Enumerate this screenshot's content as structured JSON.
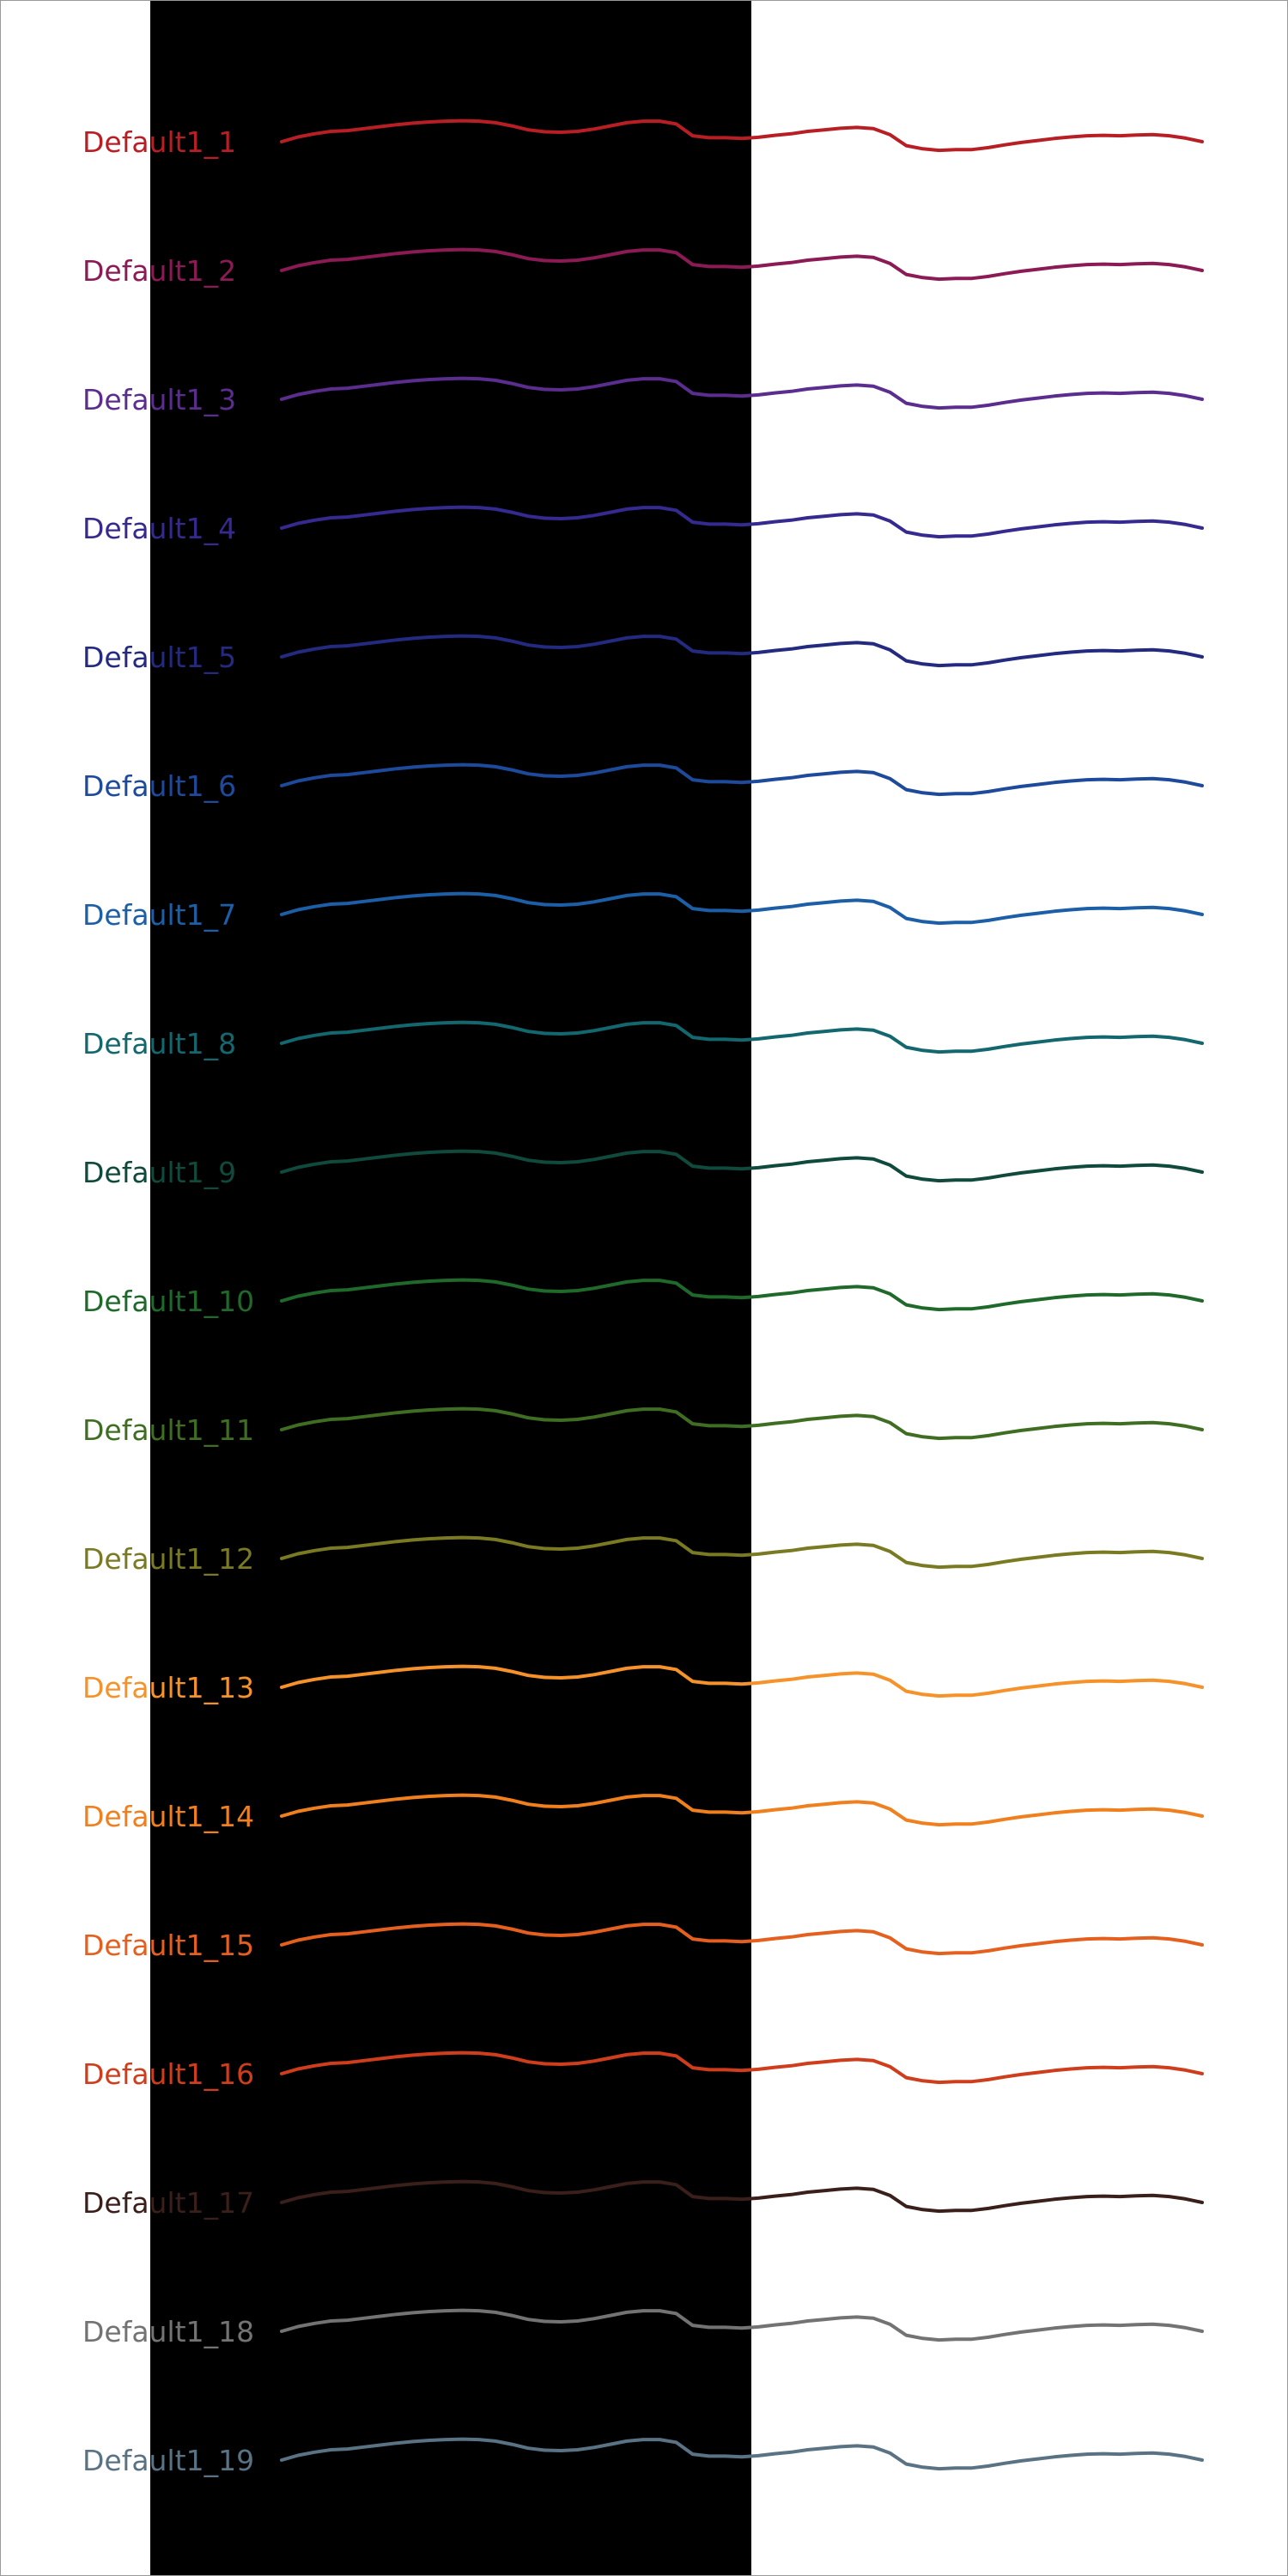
{
  "chart_data": {
    "type": "line",
    "title": "",
    "xlabel": "",
    "ylabel": "",
    "grid": false,
    "legend": "inline labels left of each line",
    "background_colors": {
      "page": "#ffffff",
      "band": "#000000",
      "border": "#999999"
    },
    "x": [
      0,
      1,
      2,
      3,
      4,
      5,
      6,
      7,
      8,
      9,
      10,
      11,
      12,
      13,
      14,
      15,
      16,
      17,
      18,
      19,
      20,
      21,
      22,
      23,
      24,
      25,
      26,
      27,
      28,
      29,
      30,
      31,
      32,
      33,
      34,
      35,
      36,
      37,
      38,
      39,
      40,
      41,
      42,
      43,
      44,
      45,
      46,
      47,
      48,
      49,
      50,
      51,
      52,
      53,
      54,
      55,
      56
    ],
    "profile": [
      0.0,
      0.12,
      0.2,
      0.26,
      0.28,
      0.33,
      0.38,
      0.43,
      0.47,
      0.5,
      0.52,
      0.53,
      0.52,
      0.48,
      0.4,
      0.3,
      0.25,
      0.24,
      0.26,
      0.32,
      0.4,
      0.48,
      0.52,
      0.52,
      0.45,
      0.15,
      0.1,
      0.1,
      0.08,
      0.11,
      0.16,
      0.2,
      0.26,
      0.3,
      0.34,
      0.36,
      0.33,
      0.18,
      -0.1,
      -0.18,
      -0.22,
      -0.2,
      -0.2,
      -0.15,
      -0.08,
      -0.02,
      0.03,
      0.08,
      0.12,
      0.15,
      0.16,
      0.15,
      0.17,
      0.18,
      0.15,
      0.09,
      0.0
    ],
    "series": [
      {
        "name": "Default1_1",
        "color": "#b81f25"
      },
      {
        "name": "Default1_2",
        "color": "#8b1a55"
      },
      {
        "name": "Default1_3",
        "color": "#5b2d8e"
      },
      {
        "name": "Default1_4",
        "color": "#352a8f"
      },
      {
        "name": "Default1_5",
        "color": "#232a80"
      },
      {
        "name": "Default1_6",
        "color": "#1e4a9b"
      },
      {
        "name": "Default1_7",
        "color": "#1c5fa6"
      },
      {
        "name": "Default1_8",
        "color": "#13676e"
      },
      {
        "name": "Default1_9",
        "color": "#0f4a3c"
      },
      {
        "name": "Default1_10",
        "color": "#1f6a2b"
      },
      {
        "name": "Default1_11",
        "color": "#3f6e23"
      },
      {
        "name": "Default1_12",
        "color": "#7a7a22"
      },
      {
        "name": "Default1_13",
        "color": "#f6922a"
      },
      {
        "name": "Default1_14",
        "color": "#f07f1e"
      },
      {
        "name": "Default1_15",
        "color": "#e5601f"
      },
      {
        "name": "Default1_16",
        "color": "#cf3e1c"
      },
      {
        "name": "Default1_17",
        "color": "#3a1f1b"
      },
      {
        "name": "Default1_18",
        "color": "#737373"
      },
      {
        "name": "Default1_19",
        "color": "#5a7384"
      }
    ]
  }
}
